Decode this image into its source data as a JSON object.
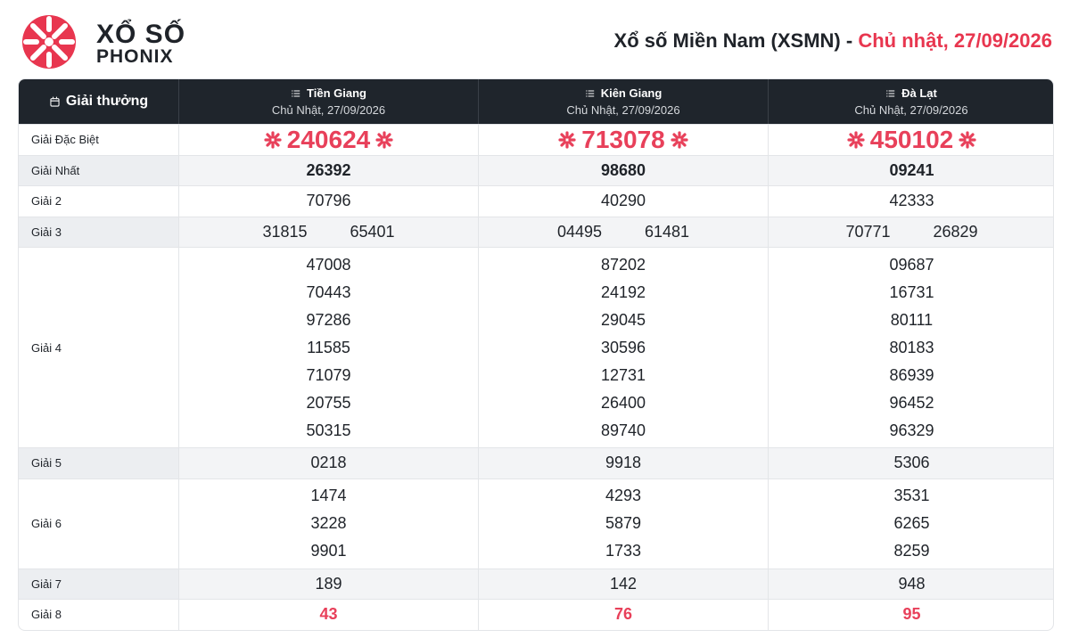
{
  "header": {
    "logo_top": "XỔ SỐ",
    "logo_bottom": "PHONIX",
    "title": "Xổ số Miền Nam (XSMN)",
    "separator": "-",
    "date": "Chủ nhật, 27/09/2026"
  },
  "table": {
    "corner": "Giải thưởng",
    "columns": [
      {
        "name": "Tiền Giang",
        "date": "Chủ Nhật, 27/09/2026"
      },
      {
        "name": "Kiên Giang",
        "date": "Chủ Nhật, 27/09/2026"
      },
      {
        "name": "Đà Lạt",
        "date": "Chủ Nhật, 27/09/2026"
      }
    ],
    "rows": [
      {
        "name": "Giải Đặc Biệt",
        "values": [
          [
            "240624"
          ],
          [
            "713078"
          ],
          [
            "450102"
          ]
        ]
      },
      {
        "name": "Giải Nhất",
        "values": [
          [
            "26392"
          ],
          [
            "98680"
          ],
          [
            "09241"
          ]
        ]
      },
      {
        "name": "Giải 2",
        "values": [
          [
            "70796"
          ],
          [
            "40290"
          ],
          [
            "42333"
          ]
        ]
      },
      {
        "name": "Giải 3",
        "values": [
          [
            "31815",
            "65401"
          ],
          [
            "04495",
            "61481"
          ],
          [
            "70771",
            "26829"
          ]
        ]
      },
      {
        "name": "Giải 4",
        "values": [
          [
            "47008",
            "70443",
            "97286",
            "11585",
            "71079",
            "20755",
            "50315"
          ],
          [
            "87202",
            "24192",
            "29045",
            "30596",
            "12731",
            "26400",
            "89740"
          ],
          [
            "09687",
            "16731",
            "80111",
            "80183",
            "86939",
            "96452",
            "96329"
          ]
        ]
      },
      {
        "name": "Giải 5",
        "values": [
          [
            "0218"
          ],
          [
            "9918"
          ],
          [
            "5306"
          ]
        ]
      },
      {
        "name": "Giải 6",
        "values": [
          [
            "1474",
            "3228",
            "9901"
          ],
          [
            "4293",
            "5879",
            "1733"
          ],
          [
            "3531",
            "6265",
            "8259"
          ]
        ]
      },
      {
        "name": "Giải 7",
        "values": [
          [
            "189"
          ],
          [
            "142"
          ],
          [
            "948"
          ]
        ]
      },
      {
        "name": "Giải 8",
        "values": [
          [
            "43"
          ],
          [
            "76"
          ],
          [
            "95"
          ]
        ]
      }
    ]
  }
}
